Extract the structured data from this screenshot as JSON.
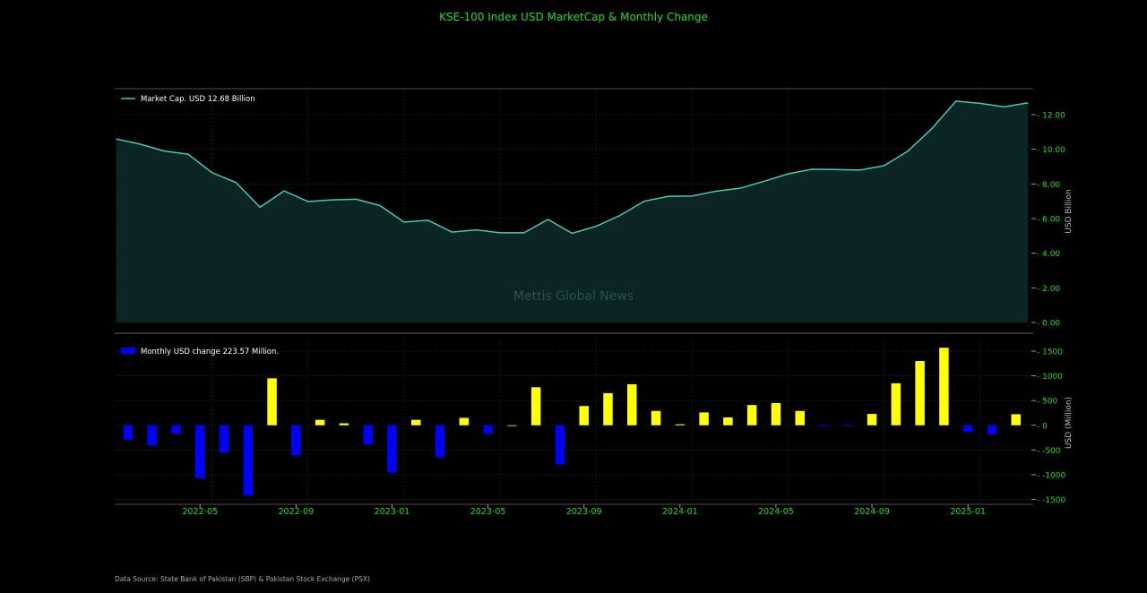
{
  "colors": {
    "background": "#000000",
    "title": "#22dd22",
    "tick": "#22dd22",
    "axis_label": "#bbbbbb",
    "line": "#48c9b0",
    "area": "#0b2424",
    "bar_positive": "#ffff00",
    "bar_negative": "#0000ff",
    "grid": "#2a2a2a",
    "watermark": "#2c5050",
    "source": "#aaaaaa"
  },
  "chart_data": [
    {
      "type": "area",
      "title": "KSE-100 Index USD MarketCap & Monthly Change",
      "ylabel": "USD Billion",
      "ylim": [
        0,
        13.5
      ],
      "yticks": [
        "0.00",
        "2.00",
        "4.00",
        "6.00",
        "8.00",
        "10.00",
        "12.00"
      ],
      "ytick_values": [
        0,
        2,
        4,
        6,
        8,
        10,
        12
      ],
      "legend": "Market Cap. USD 12.68 Billion",
      "legend_position": "top-left",
      "watermark": "Mettis Global News",
      "x": [
        "2022-01",
        "2022-02",
        "2022-03",
        "2022-04",
        "2022-05",
        "2022-06",
        "2022-07",
        "2022-08",
        "2022-09",
        "2022-10",
        "2022-11",
        "2022-12",
        "2023-01",
        "2023-02",
        "2023-03",
        "2023-04",
        "2023-05",
        "2023-06",
        "2023-07",
        "2023-08",
        "2023-09",
        "2023-10",
        "2023-11",
        "2023-12",
        "2024-01",
        "2024-02",
        "2024-03",
        "2024-04",
        "2024-05",
        "2024-06",
        "2024-07",
        "2024-08",
        "2024-09",
        "2024-10",
        "2024-11",
        "2024-12",
        "2025-01",
        "2025-02",
        "2025-03"
      ],
      "values": [
        10.6,
        10.3,
        9.9,
        9.72,
        8.65,
        8.08,
        6.65,
        7.6,
        6.98,
        7.08,
        7.12,
        6.75,
        5.8,
        5.9,
        5.22,
        5.35,
        5.18,
        5.18,
        5.95,
        5.15,
        5.55,
        6.18,
        7.0,
        7.28,
        7.3,
        7.58,
        7.75,
        8.15,
        8.58,
        8.85,
        8.83,
        8.8,
        9.05,
        9.9,
        11.2,
        12.78,
        12.65,
        12.45,
        12.68
      ],
      "grid": true
    },
    {
      "type": "bar",
      "ylabel": "USD (Million)",
      "ylim": [
        -1600,
        1700
      ],
      "yticks": [
        "-1500",
        "-1000",
        "-500",
        "0",
        "500",
        "1000",
        "1500"
      ],
      "ytick_values": [
        -1500,
        -1000,
        -500,
        0,
        500,
        1000,
        1500
      ],
      "legend": "Monthly USD change 223.57 Million.",
      "legend_position": "top-left",
      "x": [
        "2022-02",
        "2022-03",
        "2022-04",
        "2022-05",
        "2022-06",
        "2022-07",
        "2022-08",
        "2022-09",
        "2022-10",
        "2022-11",
        "2022-12",
        "2023-01",
        "2023-02",
        "2023-03",
        "2023-04",
        "2023-05",
        "2023-06",
        "2023-07",
        "2023-08",
        "2023-09",
        "2023-10",
        "2023-11",
        "2023-12",
        "2024-01",
        "2024-02",
        "2024-03",
        "2024-04",
        "2024-05",
        "2024-06",
        "2024-07",
        "2024-08",
        "2024-09",
        "2024-10",
        "2024-11",
        "2024-12",
        "2025-01",
        "2025-02",
        "2025-03"
      ],
      "values": [
        -290,
        -410,
        -170,
        -1070,
        -560,
        -1420,
        950,
        -610,
        110,
        40,
        -390,
        -960,
        110,
        -650,
        150,
        -170,
        0,
        770,
        -790,
        390,
        650,
        830,
        290,
        20,
        260,
        160,
        410,
        450,
        290,
        -20,
        -20,
        230,
        850,
        1300,
        1570,
        -130,
        -180,
        224
      ],
      "grid": true
    }
  ],
  "xticks": [
    "2022-05",
    "2022-09",
    "2023-01",
    "2023-05",
    "2023-09",
    "2024-01",
    "2024-05",
    "2024-09",
    "2025-01"
  ],
  "xtick_months": [
    "2022-05",
    "2022-09",
    "2023-01",
    "2023-05",
    "2023-09",
    "2024-01",
    "2024-05",
    "2024-09",
    "2025-01"
  ],
  "source_note": "Data Source: State Bank of Pakistan (SBP) & Pakistan Stock Exchange (PSX)"
}
